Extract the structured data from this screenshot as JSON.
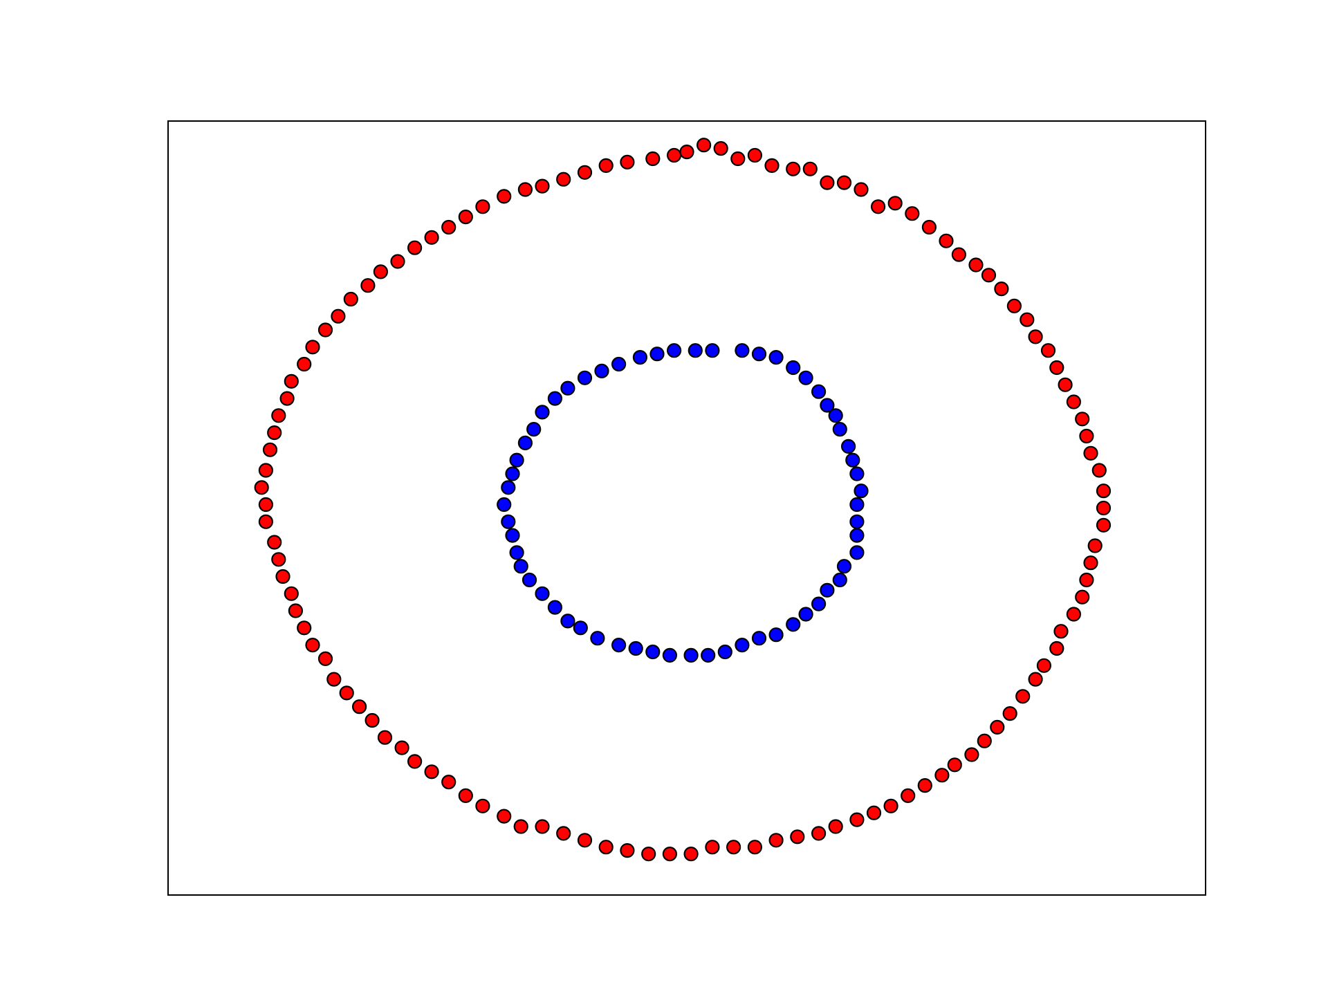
{
  "chart_data": {
    "type": "scatter",
    "title": "",
    "xlabel": "",
    "ylabel": "",
    "xlim": [
      -1.22,
      1.22
    ],
    "ylim": [
      -1.13,
      1.13
    ],
    "grid": false,
    "legend": "none",
    "ticks_visible": false,
    "marker": {
      "edge_color": "#000000"
    },
    "series": [
      {
        "color": "#ff0000",
        "values": [
          [
            0.0,
            1.04
          ],
          [
            0.04,
            1.06
          ],
          [
            0.08,
            1.05
          ],
          [
            0.12,
            1.02
          ],
          [
            0.16,
            1.03
          ],
          [
            0.2,
            1.0
          ],
          [
            0.25,
            0.99
          ],
          [
            0.29,
            0.99
          ],
          [
            0.33,
            0.95
          ],
          [
            0.37,
            0.95
          ],
          [
            0.41,
            0.93
          ],
          [
            0.45,
            0.88
          ],
          [
            0.49,
            0.89
          ],
          [
            0.53,
            0.86
          ],
          [
            0.57,
            0.82
          ],
          [
            0.61,
            0.78
          ],
          [
            0.64,
            0.74
          ],
          [
            0.68,
            0.71
          ],
          [
            0.71,
            0.68
          ],
          [
            0.74,
            0.64
          ],
          [
            0.77,
            0.59
          ],
          [
            0.8,
            0.55
          ],
          [
            0.82,
            0.5
          ],
          [
            0.85,
            0.46
          ],
          [
            0.87,
            0.41
          ],
          [
            0.89,
            0.36
          ],
          [
            0.91,
            0.31
          ],
          [
            0.93,
            0.26
          ],
          [
            0.94,
            0.21
          ],
          [
            0.95,
            0.16
          ],
          [
            0.97,
            0.11
          ],
          [
            0.98,
            0.05
          ],
          [
            0.98,
            0.0
          ],
          [
            0.98,
            -0.05
          ],
          [
            0.96,
            -0.11
          ],
          [
            0.95,
            -0.16
          ],
          [
            0.94,
            -0.21
          ],
          [
            0.93,
            -0.26
          ],
          [
            0.91,
            -0.31
          ],
          [
            0.88,
            -0.36
          ],
          [
            0.87,
            -0.41
          ],
          [
            0.84,
            -0.46
          ],
          [
            0.82,
            -0.5
          ],
          [
            0.79,
            -0.55
          ],
          [
            0.76,
            -0.6
          ],
          [
            0.73,
            -0.64
          ],
          [
            0.7,
            -0.68
          ],
          [
            0.67,
            -0.72
          ],
          [
            0.63,
            -0.75
          ],
          [
            0.6,
            -0.78
          ],
          [
            0.56,
            -0.81
          ],
          [
            0.52,
            -0.84
          ],
          [
            0.48,
            -0.87
          ],
          [
            0.44,
            -0.89
          ],
          [
            0.4,
            -0.91
          ],
          [
            0.35,
            -0.93
          ],
          [
            0.31,
            -0.95
          ],
          [
            0.26,
            -0.96
          ],
          [
            0.21,
            -0.97
          ],
          [
            0.16,
            -0.99
          ],
          [
            0.11,
            -0.99
          ],
          [
            0.06,
            -0.99
          ],
          [
            0.01,
            -1.01
          ],
          [
            -0.04,
            -1.01
          ],
          [
            -0.09,
            -1.01
          ],
          [
            -0.14,
            -1.0
          ],
          [
            -0.19,
            -0.99
          ],
          [
            -0.24,
            -0.97
          ],
          [
            -0.29,
            -0.95
          ],
          [
            -0.34,
            -0.93
          ],
          [
            -0.39,
            -0.93
          ],
          [
            -0.43,
            -0.9
          ],
          [
            -0.48,
            -0.87
          ],
          [
            -0.52,
            -0.84
          ],
          [
            -0.56,
            -0.8
          ],
          [
            -0.6,
            -0.77
          ],
          [
            -0.64,
            -0.74
          ],
          [
            -0.67,
            -0.7
          ],
          [
            -0.71,
            -0.67
          ],
          [
            -0.74,
            -0.62
          ],
          [
            -0.77,
            -0.58
          ],
          [
            -0.8,
            -0.54
          ],
          [
            -0.83,
            -0.5
          ],
          [
            -0.85,
            -0.44
          ],
          [
            -0.88,
            -0.4
          ],
          [
            -0.9,
            -0.35
          ],
          [
            -0.92,
            -0.3
          ],
          [
            -0.93,
            -0.25
          ],
          [
            -0.95,
            -0.2
          ],
          [
            -0.96,
            -0.15
          ],
          [
            -0.97,
            -0.1
          ],
          [
            -0.99,
            -0.04
          ],
          [
            -0.99,
            0.01
          ],
          [
            -1.0,
            0.06
          ],
          [
            -0.99,
            0.11
          ],
          [
            -0.98,
            0.17
          ],
          [
            -0.97,
            0.22
          ],
          [
            -0.96,
            0.27
          ],
          [
            -0.94,
            0.32
          ],
          [
            -0.93,
            0.37
          ],
          [
            -0.9,
            0.42
          ],
          [
            -0.88,
            0.47
          ],
          [
            -0.85,
            0.52
          ],
          [
            -0.82,
            0.56
          ],
          [
            -0.79,
            0.61
          ],
          [
            -0.75,
            0.65
          ],
          [
            -0.72,
            0.69
          ],
          [
            -0.68,
            0.72
          ],
          [
            -0.64,
            0.76
          ],
          [
            -0.6,
            0.79
          ],
          [
            -0.56,
            0.82
          ],
          [
            -0.52,
            0.85
          ],
          [
            -0.48,
            0.88
          ],
          [
            -0.43,
            0.91
          ],
          [
            -0.38,
            0.93
          ],
          [
            -0.34,
            0.94
          ],
          [
            -0.29,
            0.96
          ],
          [
            -0.24,
            0.98
          ],
          [
            -0.19,
            1.0
          ],
          [
            -0.14,
            1.01
          ],
          [
            -0.08,
            1.02
          ],
          [
            -0.03,
            1.03
          ]
        ]
      },
      {
        "color": "#0000ff",
        "values": [
          [
            0.13,
            0.46
          ],
          [
            0.17,
            0.45
          ],
          [
            0.21,
            0.44
          ],
          [
            0.25,
            0.41
          ],
          [
            0.28,
            0.38
          ],
          [
            0.31,
            0.34
          ],
          [
            0.33,
            0.3
          ],
          [
            0.35,
            0.27
          ],
          [
            0.36,
            0.23
          ],
          [
            0.38,
            0.18
          ],
          [
            0.39,
            0.14
          ],
          [
            0.4,
            0.1
          ],
          [
            0.41,
            0.05
          ],
          [
            0.4,
            0.01
          ],
          [
            0.4,
            -0.04
          ],
          [
            0.4,
            -0.08
          ],
          [
            0.4,
            -0.13
          ],
          [
            0.37,
            -0.17
          ],
          [
            0.36,
            -0.21
          ],
          [
            0.33,
            -0.24
          ],
          [
            0.31,
            -0.28
          ],
          [
            0.28,
            -0.31
          ],
          [
            0.25,
            -0.34
          ],
          [
            0.21,
            -0.37
          ],
          [
            0.17,
            -0.38
          ],
          [
            0.13,
            -0.4
          ],
          [
            0.09,
            -0.42
          ],
          [
            0.05,
            -0.43
          ],
          [
            0.01,
            -0.43
          ],
          [
            -0.04,
            -0.43
          ],
          [
            -0.08,
            -0.42
          ],
          [
            -0.12,
            -0.41
          ],
          [
            -0.16,
            -0.4
          ],
          [
            -0.21,
            -0.38
          ],
          [
            -0.25,
            -0.35
          ],
          [
            -0.28,
            -0.33
          ],
          [
            -0.31,
            -0.29
          ],
          [
            -0.34,
            -0.25
          ],
          [
            -0.37,
            -0.21
          ],
          [
            -0.39,
            -0.17
          ],
          [
            -0.4,
            -0.13
          ],
          [
            -0.41,
            -0.08
          ],
          [
            -0.42,
            -0.04
          ],
          [
            -0.43,
            0.01
          ],
          [
            -0.42,
            0.06
          ],
          [
            -0.41,
            0.1
          ],
          [
            -0.4,
            0.14
          ],
          [
            -0.38,
            0.19
          ],
          [
            -0.36,
            0.23
          ],
          [
            -0.34,
            0.28
          ],
          [
            -0.31,
            0.32
          ],
          [
            -0.28,
            0.35
          ],
          [
            -0.24,
            0.38
          ],
          [
            -0.2,
            0.4
          ],
          [
            -0.16,
            0.42
          ],
          [
            -0.11,
            0.44
          ],
          [
            -0.07,
            0.45
          ],
          [
            -0.03,
            0.46
          ],
          [
            0.02,
            0.46
          ],
          [
            0.06,
            0.46
          ]
        ]
      }
    ]
  }
}
